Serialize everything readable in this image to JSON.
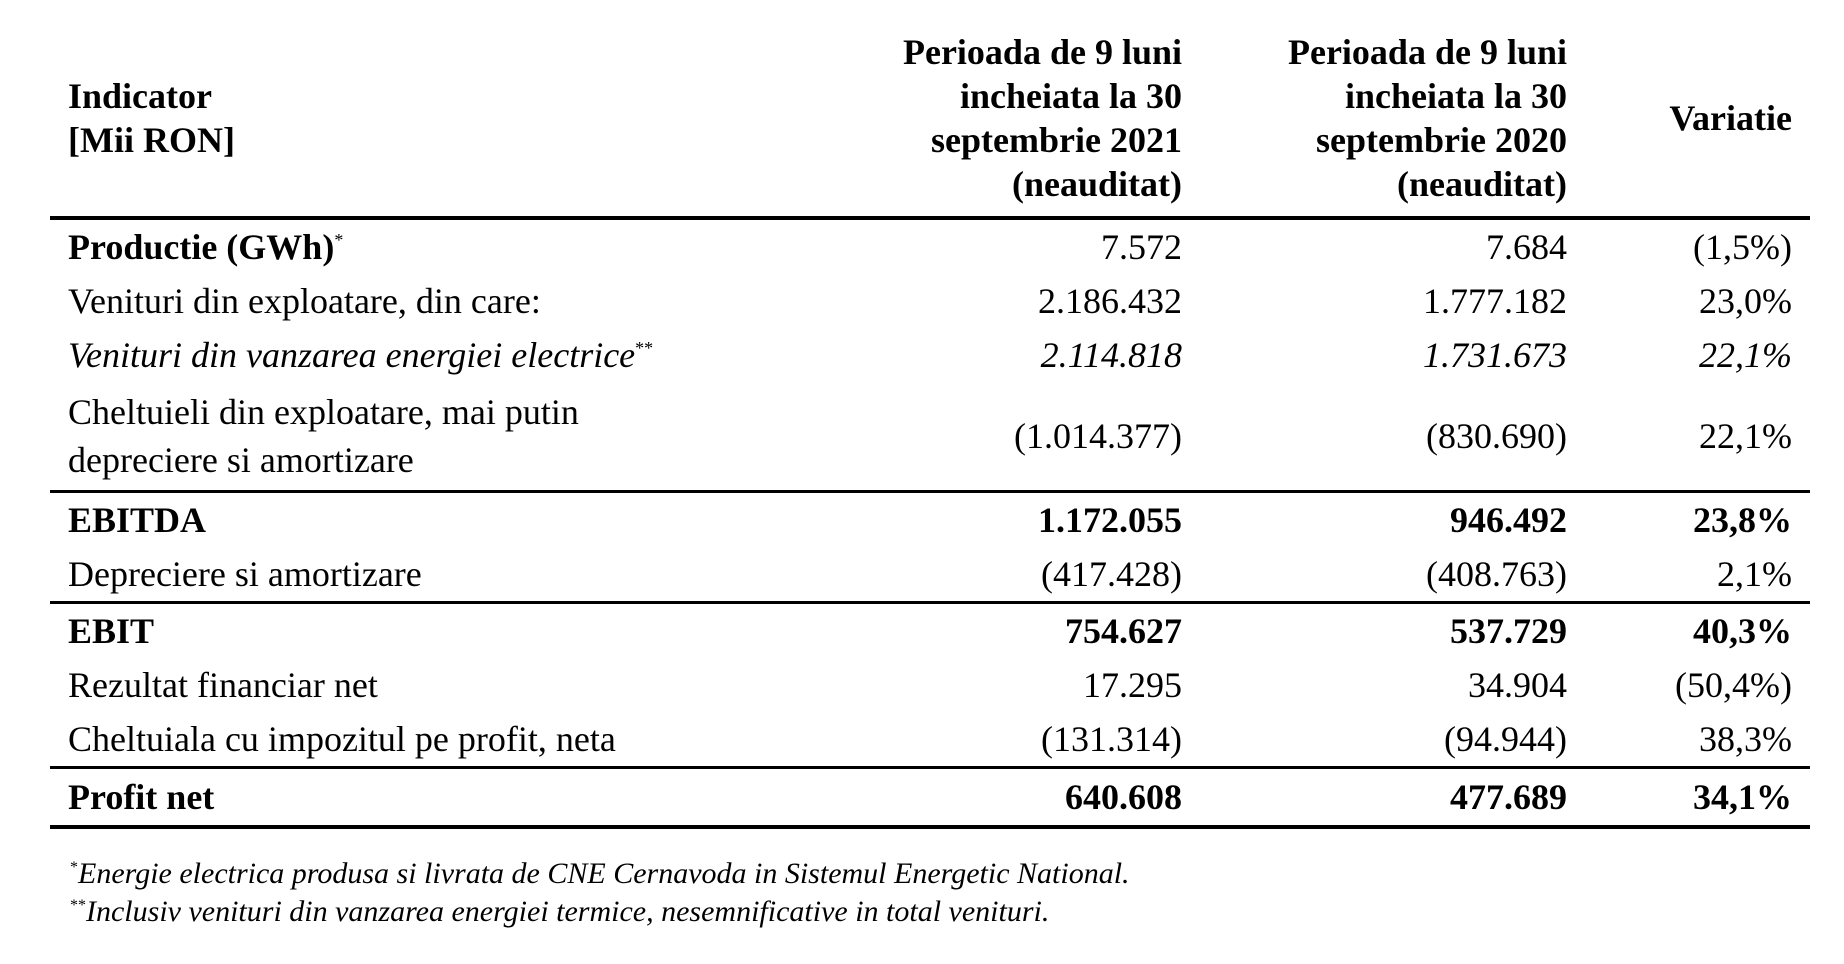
{
  "table": {
    "headers": {
      "indicator_line1": "Indicator",
      "indicator_line2": "[Mii RON]",
      "period_2021_line1": "Perioada de 9 luni",
      "period_2021_line2": "incheiata la 30",
      "period_2021_line3": "septembrie 2021",
      "period_2021_line4": "(neauditat)",
      "period_2020_line1": "Perioada de 9 luni",
      "period_2020_line2": "incheiata la 30",
      "period_2020_line3": "septembrie 2020",
      "period_2020_line4": "(neauditat)",
      "variation": "Variatie"
    },
    "rows": [
      {
        "label": "Productie (GWh)",
        "marker": "*",
        "v2021": "7.572",
        "v2020": "7.684",
        "var": "(1,5%)"
      },
      {
        "label": "Venituri din exploatare, din care:",
        "v2021": "2.186.432",
        "v2020": "1.777.182",
        "var": "23,0%"
      },
      {
        "label": "Venituri din vanzarea energiei electrice",
        "marker": "**",
        "v2021": "2.114.818",
        "v2020": "1.731.673",
        "var": "22,1%"
      },
      {
        "label_line1": "Cheltuieli din exploatare, mai putin",
        "label_line2": "depreciere si amortizare",
        "v2021": "(1.014.377)",
        "v2020": "(830.690)",
        "var": "22,1%"
      },
      {
        "label": "EBITDA",
        "v2021": "1.172.055",
        "v2020": "946.492",
        "var": "23,8%"
      },
      {
        "label": "Depreciere si amortizare",
        "v2021": "(417.428)",
        "v2020": "(408.763)",
        "var": "2,1%"
      },
      {
        "label": "EBIT",
        "v2021": "754.627",
        "v2020": "537.729",
        "var": "40,3%"
      },
      {
        "label": "Rezultat financiar net",
        "v2021": "17.295",
        "v2020": "34.904",
        "var": "(50,4%)"
      },
      {
        "label": "Cheltuiala cu impozitul pe profit, neta",
        "v2021": "(131.314)",
        "v2020": "(94.944)",
        "var": "38,3%"
      },
      {
        "label": "Profit net",
        "v2021": "640.608",
        "v2020": "477.689",
        "var": "34,1%"
      }
    ]
  },
  "footnotes": [
    {
      "marker": "*",
      "text": "Energie electrica produsa si livrata de CNE Cernavoda in Sistemul Energetic National."
    },
    {
      "marker": "**",
      "text": "Inclusiv venituri din vanzarea energiei termice, nesemnificative in total venituri."
    }
  ]
}
